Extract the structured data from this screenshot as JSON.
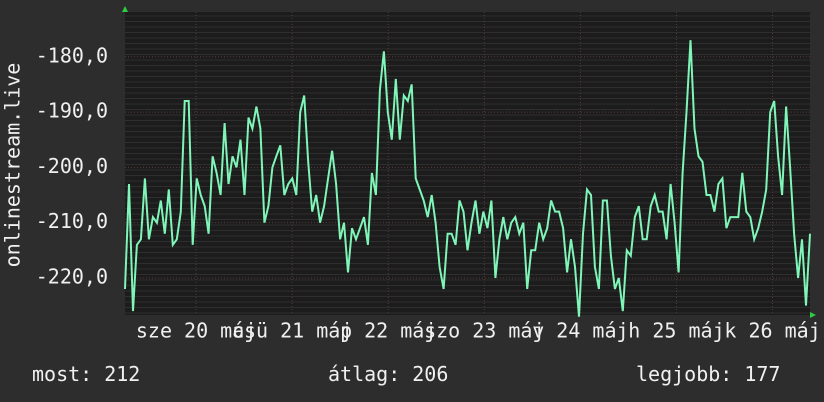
{
  "chart_data": {
    "type": "line",
    "y_label": "onlinestream.live",
    "color": "#7ff5b8",
    "xlim": [
      19.76,
      26.89
    ],
    "xticks": [
      {
        "value": 20.5,
        "label": "sze 20 máj"
      },
      {
        "value": 21.5,
        "label": "csü 21 máj"
      },
      {
        "value": 22.5,
        "label": "p 22 máj"
      },
      {
        "value": 23.5,
        "label": "szo 23 máj"
      },
      {
        "value": 24.5,
        "label": "v 24 máj"
      },
      {
        "value": 25.5,
        "label": "h 25 máj"
      },
      {
        "value": 26.5,
        "label": "k 26 máj"
      }
    ],
    "ylim": [
      -226.7,
      -171.9
    ],
    "yticks": [
      {
        "value": -180,
        "label": "-180,0"
      },
      {
        "value": -190,
        "label": "-190,0"
      },
      {
        "value": -200,
        "label": "-200,0"
      },
      {
        "value": -210,
        "label": "-210,0"
      },
      {
        "value": -220,
        "label": "-220,0"
      }
    ],
    "grid": true,
    "values": [
      -222,
      -203,
      -226,
      -214,
      -213,
      -202,
      -213,
      -209,
      -210,
      -206,
      -212,
      -204,
      -214,
      -213,
      -208,
      -188,
      -188,
      -214,
      -202,
      -205,
      -207,
      -212,
      -198,
      -201,
      -205,
      -192,
      -203,
      -198,
      -200,
      -195,
      -205,
      -191,
      -193,
      -189,
      -193,
      -210,
      -207,
      -200,
      -198,
      -196,
      -205,
      -203,
      -202,
      -205,
      -190,
      -187,
      -199,
      -208,
      -205,
      -210,
      -207,
      -202,
      -197,
      -203,
      -213,
      -210,
      -219,
      -211,
      -213,
      -211,
      -209,
      -214,
      -201,
      -205,
      -186,
      -179,
      -190,
      -195,
      -184,
      -195,
      -187,
      -188,
      -185,
      -202,
      -204,
      -206,
      -209,
      -205,
      -210,
      -218,
      -222,
      -212,
      -212,
      -214,
      -206,
      -208,
      -215,
      -210,
      -206,
      -212,
      -208,
      -211,
      -206,
      -220,
      -213,
      -209,
      -213,
      -210,
      -209,
      -212,
      -210,
      -222,
      -215,
      -215,
      -210,
      -213,
      -211,
      -206,
      -208,
      -208,
      -211,
      -219,
      -213,
      -218,
      -227,
      -212,
      -204,
      -205,
      -218,
      -222,
      -206,
      -206,
      -216,
      -222,
      -220,
      -226,
      -215,
      -216,
      -209,
      -207,
      -213,
      -213,
      -207,
      -205,
      -208,
      -208,
      -213,
      -203,
      -210,
      -219,
      -201,
      -190,
      -177,
      -193,
      -198,
      -199,
      -205,
      -205,
      -208,
      -203,
      -202,
      -211,
      -209,
      -209,
      -209,
      -201,
      -208,
      -209,
      -213,
      -211,
      -208,
      -204,
      -190,
      -188,
      -198,
      -205,
      -189,
      -200,
      -212,
      -220,
      -213,
      -225,
      -212
    ],
    "stats": [
      {
        "label": "most:",
        "value": 212
      },
      {
        "label": "átlag:",
        "value": 206
      },
      {
        "label": "legjobb:",
        "value": 177
      }
    ]
  }
}
